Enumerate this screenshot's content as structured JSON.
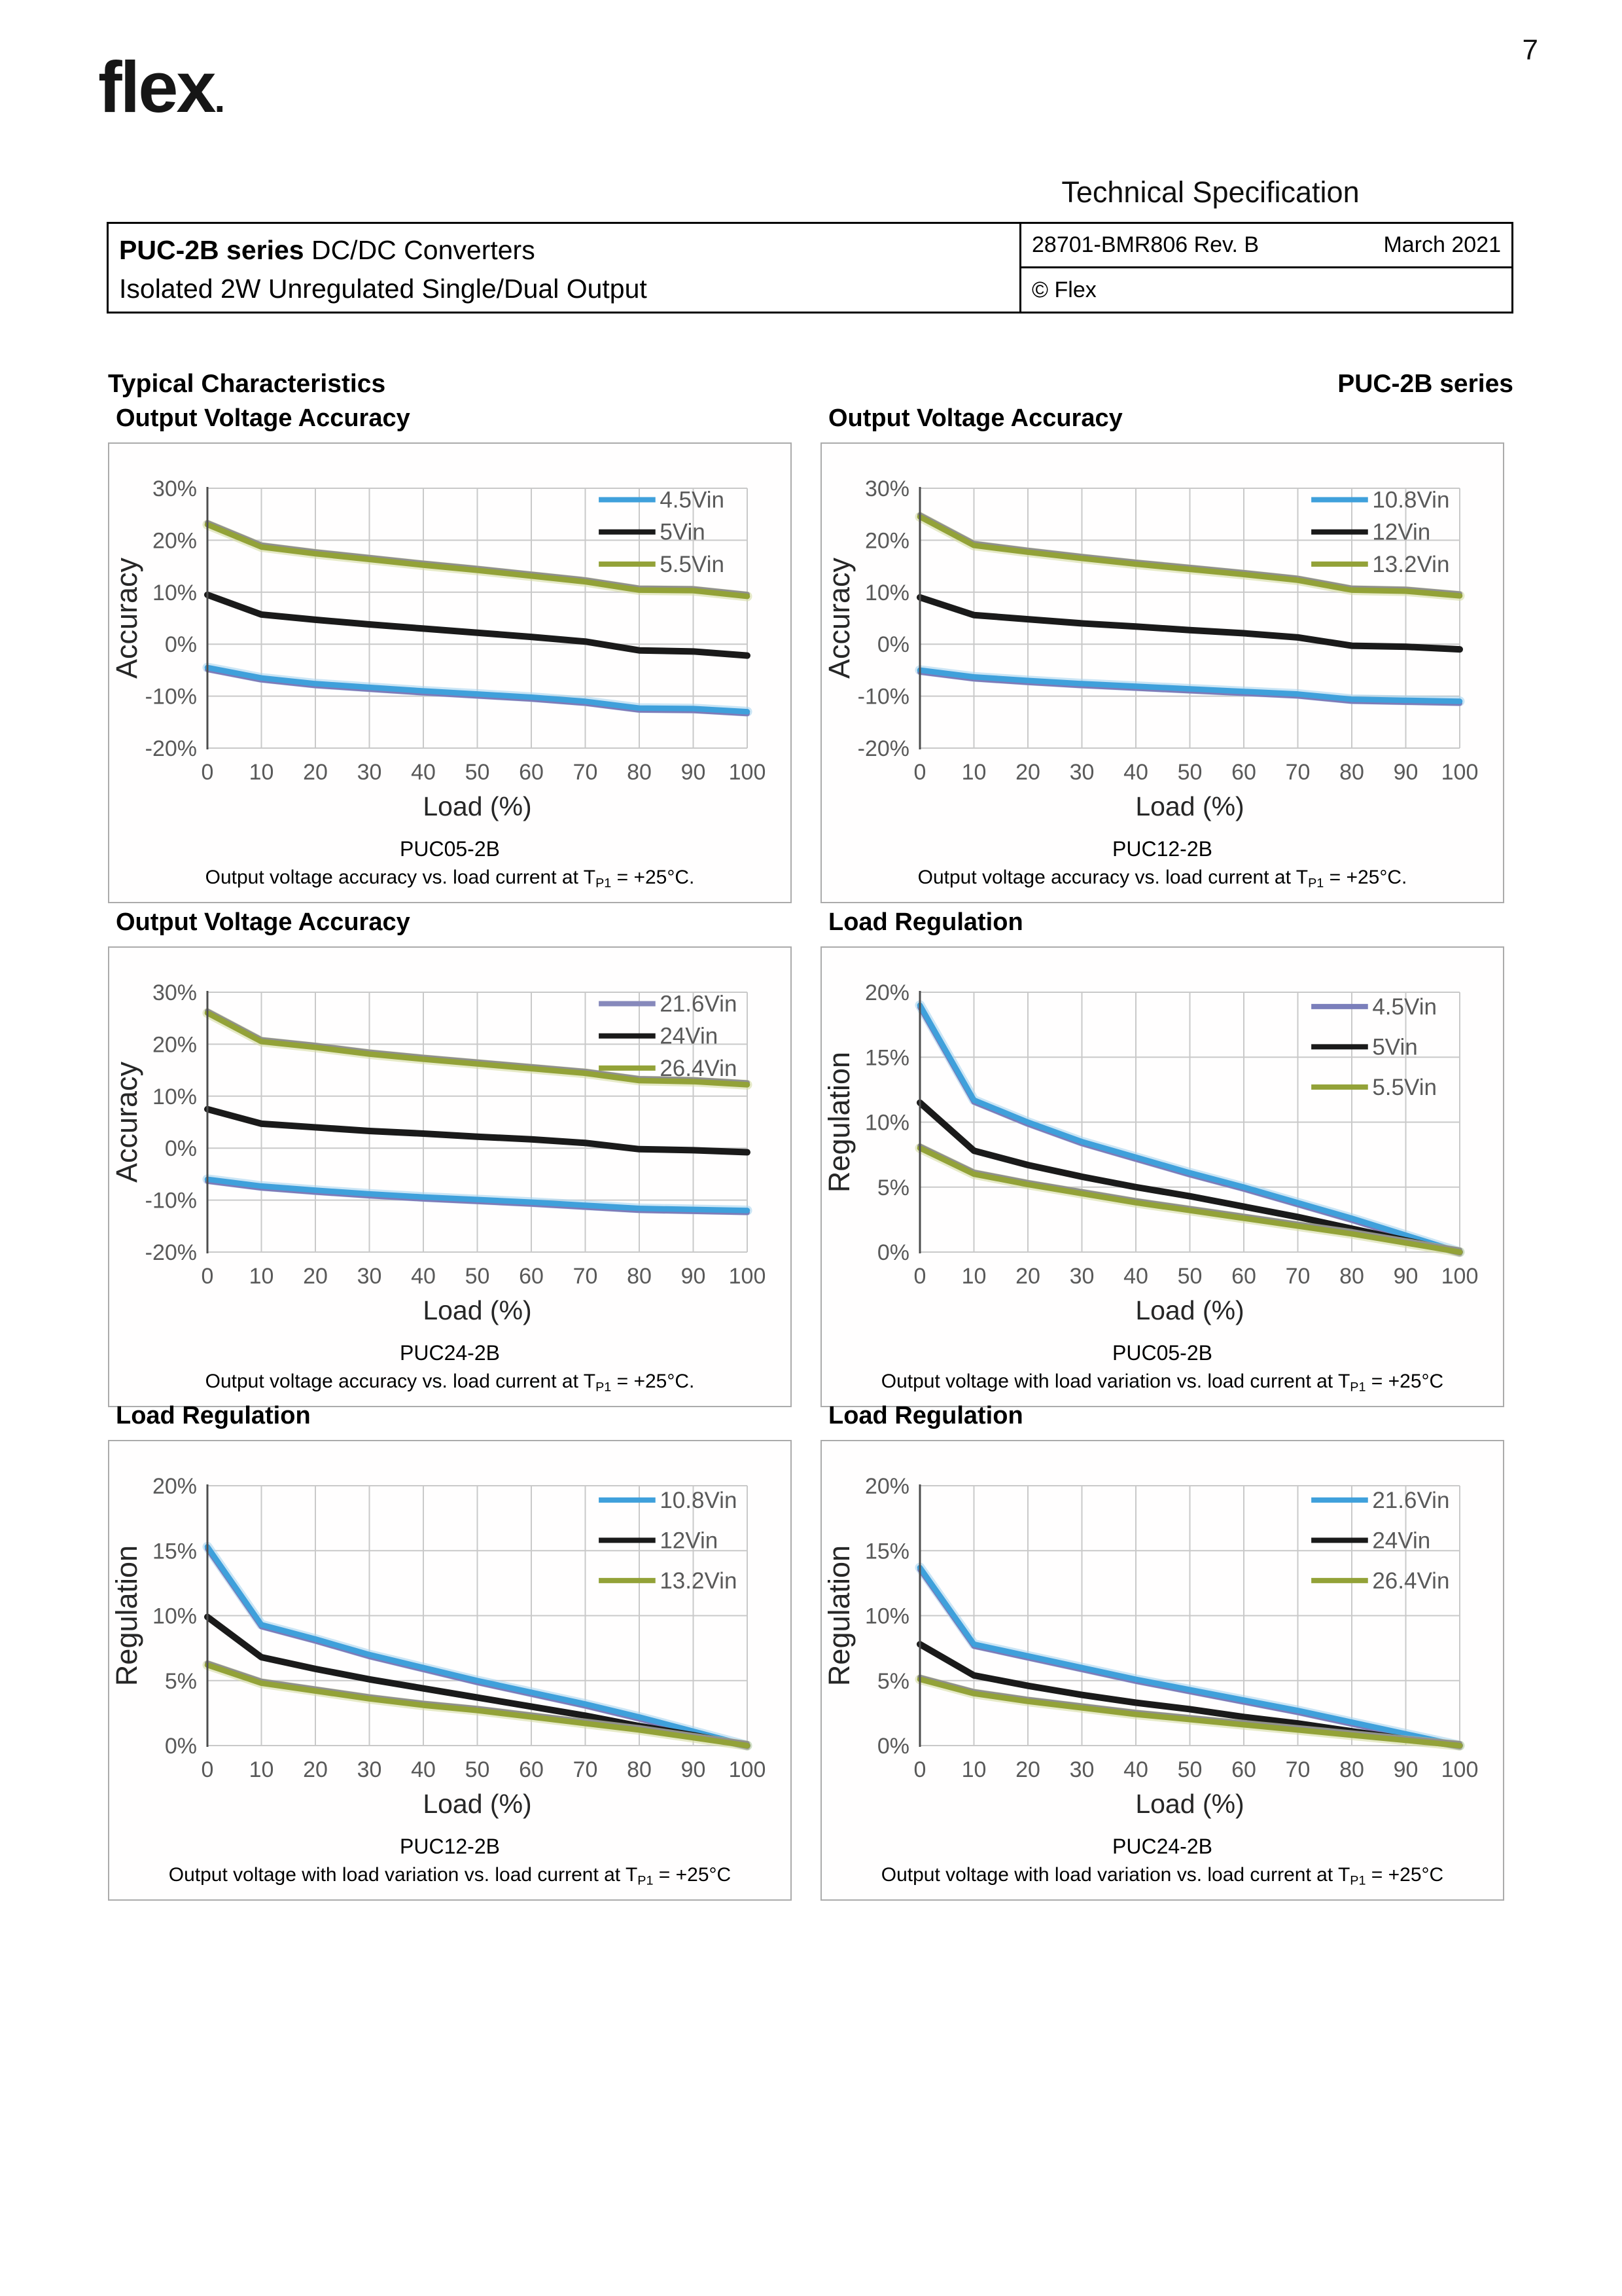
{
  "page": {
    "number": "7"
  },
  "logo": {
    "text": "flex",
    "mark": "."
  },
  "header": {
    "doc_type": "Technical Specification",
    "product_bold": "PUC-2B series",
    "product_rest": " DC/DC Converters",
    "product_subtitle": "Isolated 2W Unregulated Single/Dual Output",
    "doc_id": "28701-BMR806 Rev. B",
    "date": "March 2021",
    "copyright": "© Flex"
  },
  "section": {
    "title": "Typical Characteristics",
    "series_label": "PUC-2B series"
  },
  "colors": {
    "grid": "#c9c9c9",
    "axis": "#4d4d4d",
    "tick": "#595959",
    "label": "#262626",
    "blue": "#3fa0db",
    "black": "#1a1a1a",
    "olive": "#93a238",
    "purple": "#7f7ab8"
  },
  "chart_data": [
    {
      "type": "line",
      "title": "Output Voltage Accuracy",
      "model": "PUC05-2B",
      "caption": {
        "prefix": "Output voltage accuracy vs. load current at T",
        "sub": "P1",
        "suffix": " = +25°C."
      },
      "xlabel": "Load (%)",
      "ylabel": "Accuracy",
      "x": [
        0,
        10,
        20,
        30,
        40,
        50,
        60,
        70,
        80,
        90,
        100
      ],
      "ylim": [
        -20,
        30
      ],
      "yticks": [
        30,
        20,
        10,
        0,
        -10,
        -20
      ],
      "grid": true,
      "legend_position": "top-right",
      "series": [
        {
          "name": "4.5Vin",
          "color": "#3fa0db",
          "halo": "#a9d4ee",
          "shadow": "#7f7ab8",
          "sdy": 3,
          "values": [
            -4.5,
            -6.5,
            -7.6,
            -8.3,
            -9.0,
            -9.6,
            -10.2,
            -11.0,
            -12.3,
            -12.4,
            -13.0
          ]
        },
        {
          "name": "5Vin",
          "color": "#1a1a1a",
          "values": [
            9.5,
            5.7,
            4.7,
            3.8,
            3.0,
            2.2,
            1.4,
            0.5,
            -1.2,
            -1.4,
            -2.2
          ]
        },
        {
          "name": "5.5Vin",
          "color": "#93a238",
          "halo": "#d6dca4",
          "shadow": "#8f8f8f",
          "sdy": -3,
          "values": [
            23.0,
            18.7,
            17.4,
            16.3,
            15.2,
            14.2,
            13.1,
            12.0,
            10.4,
            10.3,
            9.2
          ]
        }
      ]
    },
    {
      "type": "line",
      "title": "Output Voltage Accuracy",
      "model": "PUC12-2B",
      "caption": {
        "prefix": "Output voltage accuracy vs. load current at T",
        "sub": "P1",
        "suffix": " = +25°C."
      },
      "xlabel": "Load (%)",
      "ylabel": "Accuracy",
      "x": [
        0,
        10,
        20,
        30,
        40,
        50,
        60,
        70,
        80,
        90,
        100
      ],
      "ylim": [
        -20,
        30
      ],
      "yticks": [
        30,
        20,
        10,
        0,
        -10,
        -20
      ],
      "grid": true,
      "legend_position": "top-right",
      "series": [
        {
          "name": "10.8Vin",
          "color": "#3fa0db",
          "halo": "#a9d4ee",
          "shadow": "#7f7ab8",
          "sdy": 3,
          "values": [
            -5.0,
            -6.3,
            -7.0,
            -7.6,
            -8.1,
            -8.6,
            -9.1,
            -9.6,
            -10.6,
            -10.8,
            -11.0
          ]
        },
        {
          "name": "12Vin",
          "color": "#1a1a1a",
          "values": [
            9.0,
            5.6,
            4.8,
            4.0,
            3.4,
            2.7,
            2.1,
            1.3,
            -0.3,
            -0.5,
            -1.0
          ]
        },
        {
          "name": "13.2Vin",
          "color": "#93a238",
          "halo": "#d6dca4",
          "shadow": "#8f8f8f",
          "sdy": -3,
          "values": [
            24.5,
            19.0,
            17.7,
            16.5,
            15.4,
            14.4,
            13.4,
            12.3,
            10.4,
            10.2,
            9.3
          ]
        }
      ]
    },
    {
      "type": "line",
      "title": "Output Voltage Accuracy",
      "model": "PUC24-2B",
      "caption": {
        "prefix": "Output voltage accuracy vs. load current at T",
        "sub": "P1",
        "suffix": " = +25°C."
      },
      "xlabel": "Load (%)",
      "ylabel": "Accuracy",
      "x": [
        0,
        10,
        20,
        30,
        40,
        50,
        60,
        70,
        80,
        90,
        100
      ],
      "ylim": [
        -20,
        30
      ],
      "yticks": [
        30,
        20,
        10,
        0,
        -10,
        -20
      ],
      "grid": true,
      "legend_position": "top-right",
      "series": [
        {
          "name": "21.6Vin",
          "color": "#3fa0db",
          "legend": "#8789bb",
          "halo": "#a9d4ee",
          "shadow": "#7f7ab8",
          "sdy": 3,
          "values": [
            -6.0,
            -7.3,
            -8.1,
            -8.8,
            -9.4,
            -9.9,
            -10.4,
            -11.0,
            -11.6,
            -11.8,
            -12.0
          ]
        },
        {
          "name": "24Vin",
          "color": "#1a1a1a",
          "values": [
            7.5,
            4.7,
            4.0,
            3.3,
            2.8,
            2.2,
            1.7,
            1.0,
            -0.2,
            -0.4,
            -0.8
          ]
        },
        {
          "name": "26.4Vin",
          "color": "#93a238",
          "halo": "#d6dca4",
          "shadow": "#8f8f8f",
          "sdy": -3,
          "values": [
            26.0,
            20.5,
            19.4,
            18.1,
            17.1,
            16.2,
            15.3,
            14.4,
            13.0,
            12.8,
            12.2
          ]
        }
      ]
    },
    {
      "type": "line",
      "title": "Load Regulation",
      "model": "PUC05-2B",
      "caption": {
        "prefix": "Output voltage with load variation vs. load current at T",
        "sub": "P1",
        "suffix": " = +25°C"
      },
      "xlabel": "Load (%)",
      "ylabel": "Regulation",
      "x": [
        0,
        10,
        20,
        30,
        40,
        50,
        60,
        70,
        80,
        90,
        100
      ],
      "ylim": [
        0,
        20
      ],
      "yticks": [
        20,
        15,
        10,
        5,
        0
      ],
      "grid": true,
      "legend_position": "top-right",
      "series": [
        {
          "name": "4.5Vin",
          "color": "#3fa0db",
          "legend": "#7b7fbb",
          "halo": "#a9d4ee",
          "shadow": "#7f7ab8",
          "sdy": 3,
          "values": [
            19.0,
            11.7,
            10.0,
            8.5,
            7.3,
            6.1,
            5.0,
            3.8,
            2.6,
            1.3,
            0.0
          ]
        },
        {
          "name": "5Vin",
          "color": "#1a1a1a",
          "values": [
            11.5,
            7.8,
            6.7,
            5.8,
            5.0,
            4.3,
            3.5,
            2.7,
            1.8,
            0.9,
            0.0
          ]
        },
        {
          "name": "5.5Vin",
          "color": "#93a238",
          "halo": "#d6dca4",
          "shadow": "#8f8f8f",
          "sdy": -3,
          "values": [
            8.0,
            6.0,
            5.2,
            4.5,
            3.8,
            3.2,
            2.6,
            2.0,
            1.4,
            0.7,
            0.0
          ]
        }
      ]
    },
    {
      "type": "line",
      "title": "Load Regulation",
      "model": "PUC12-2B",
      "caption": {
        "prefix": "Output voltage with load variation vs. load current at T",
        "sub": "P1",
        "suffix": " = +25°C"
      },
      "xlabel": "Load (%)",
      "ylabel": "Regulation",
      "x": [
        0,
        10,
        20,
        30,
        40,
        50,
        60,
        70,
        80,
        90,
        100
      ],
      "ylim": [
        0,
        20
      ],
      "yticks": [
        20,
        15,
        10,
        5,
        0
      ],
      "grid": true,
      "legend_position": "top-right",
      "series": [
        {
          "name": "10.8Vin",
          "color": "#3fa0db",
          "halo": "#a9d4ee",
          "shadow": "#7f7ab8",
          "sdy": 3,
          "values": [
            15.3,
            9.3,
            8.2,
            7.0,
            6.0,
            5.0,
            4.1,
            3.2,
            2.2,
            1.1,
            0.0
          ]
        },
        {
          "name": "12Vin",
          "color": "#1a1a1a",
          "values": [
            9.9,
            6.8,
            5.9,
            5.1,
            4.4,
            3.7,
            3.0,
            2.3,
            1.5,
            0.8,
            0.0
          ]
        },
        {
          "name": "13.2Vin",
          "color": "#93a238",
          "halo": "#d6dca4",
          "shadow": "#8f8f8f",
          "sdy": -3,
          "values": [
            6.2,
            4.8,
            4.2,
            3.6,
            3.1,
            2.7,
            2.2,
            1.7,
            1.2,
            0.6,
            0.0
          ]
        }
      ]
    },
    {
      "type": "line",
      "title": "Load Regulation",
      "model": "PUC24-2B",
      "caption": {
        "prefix": "Output voltage with load variation vs. load current at T",
        "sub": "P1",
        "suffix": " = +25°C"
      },
      "xlabel": "Load (%)",
      "ylabel": "Regulation",
      "x": [
        0,
        10,
        20,
        30,
        40,
        50,
        60,
        70,
        80,
        90,
        100
      ],
      "ylim": [
        0,
        20
      ],
      "yticks": [
        20,
        15,
        10,
        5,
        0
      ],
      "grid": true,
      "legend_position": "top-right",
      "series": [
        {
          "name": "21.6Vin",
          "color": "#3fa0db",
          "halo": "#a9d4ee",
          "shadow": "#7f7ab8",
          "sdy": 3,
          "values": [
            13.7,
            7.8,
            6.9,
            6.0,
            5.1,
            4.3,
            3.5,
            2.7,
            1.8,
            0.9,
            0.0
          ]
        },
        {
          "name": "24Vin",
          "color": "#1a1a1a",
          "values": [
            7.8,
            5.4,
            4.6,
            3.9,
            3.3,
            2.8,
            2.2,
            1.7,
            1.1,
            0.5,
            0.0
          ]
        },
        {
          "name": "26.4Vin",
          "color": "#93a238",
          "halo": "#d6dca4",
          "shadow": "#8f8f8f",
          "sdy": -3,
          "values": [
            5.1,
            4.0,
            3.4,
            2.9,
            2.4,
            2.0,
            1.6,
            1.2,
            0.8,
            0.4,
            0.0
          ]
        }
      ]
    }
  ]
}
